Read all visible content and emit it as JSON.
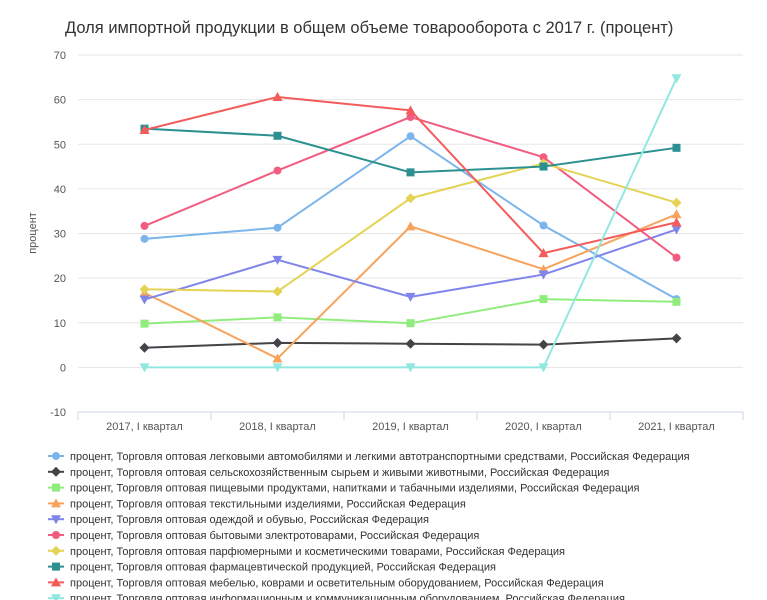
{
  "chart_data": {
    "type": "line",
    "title": "Доля импортной продукции в общем объеме товарооборота с 2017 г. (процент)",
    "ylabel": "процент",
    "xlabel": "",
    "ylim": [
      -10,
      70
    ],
    "yticks": [
      -10,
      0,
      10,
      20,
      30,
      40,
      50,
      60,
      70
    ],
    "grid": true,
    "legend_position": "bottom",
    "categories": [
      "2017, I квартал",
      "2018, I квартал",
      "2019, I квартал",
      "2020, I квартал",
      "2021, I квартал"
    ],
    "series": [
      {
        "name": "процент, Торговля оптовая легковыми автомобилями и легкими автотранспортными средствами, Российская Федерация",
        "color": "#7cb5ec",
        "marker": "circle",
        "values": [
          28.8,
          31.3,
          51.8,
          31.8,
          15.3
        ]
      },
      {
        "name": "процент, Торговля оптовая сельскохозяйственным сырьем и живыми животными, Российская Федерация",
        "color": "#434348",
        "marker": "diamond",
        "values": [
          4.4,
          5.5,
          5.3,
          5.1,
          6.5
        ]
      },
      {
        "name": "процент, Торговля оптовая пищевыми продуктами, напитками и табачными изделиями, Российская Федерация",
        "color": "#90ed7d",
        "marker": "square",
        "values": [
          9.8,
          11.2,
          9.9,
          15.3,
          14.7
        ]
      },
      {
        "name": "процент, Торговля оптовая текстильными изделиями, Российская Федерация",
        "color": "#f7a35c",
        "marker": "triangle",
        "values": [
          16.7,
          2.0,
          31.6,
          22.0,
          34.3
        ]
      },
      {
        "name": "процент, Торговля оптовая одеждой и обувью, Российская Федерация",
        "color": "#8085e9",
        "marker": "triangle-down",
        "values": [
          15.2,
          24.1,
          15.8,
          20.8,
          30.9
        ]
      },
      {
        "name": "процент, Торговля оптовая бытовыми электротоварами, Российская Федерация",
        "color": "#f15c80",
        "marker": "circle",
        "values": [
          31.7,
          44.1,
          56.1,
          47.1,
          24.6
        ]
      },
      {
        "name": "процент, Торговля оптовая парфюмерными и косметическими товарами, Российская Федерация",
        "color": "#e4d354",
        "marker": "diamond",
        "values": [
          17.5,
          17.0,
          37.9,
          45.7,
          36.9
        ]
      },
      {
        "name": "процент, Торговля оптовая фармацевтической продукцией, Российская Федерация",
        "color": "#2b908f",
        "marker": "square",
        "values": [
          53.5,
          51.9,
          43.7,
          45.0,
          49.2
        ]
      },
      {
        "name": "процент, Торговля оптовая мебелью, коврами и осветительным оборудованием, Российская Федерация",
        "color": "#f45b5b",
        "marker": "triangle",
        "values": [
          53.2,
          60.6,
          57.6,
          25.6,
          32.5
        ]
      },
      {
        "name": "процент, Торговля оптовая информационным и коммуникационным оборудованием, Российская Федерация",
        "color": "#91e8e1",
        "marker": "triangle-down",
        "values": [
          0.0,
          0.0,
          0.0,
          0.0,
          64.8
        ]
      }
    ]
  }
}
